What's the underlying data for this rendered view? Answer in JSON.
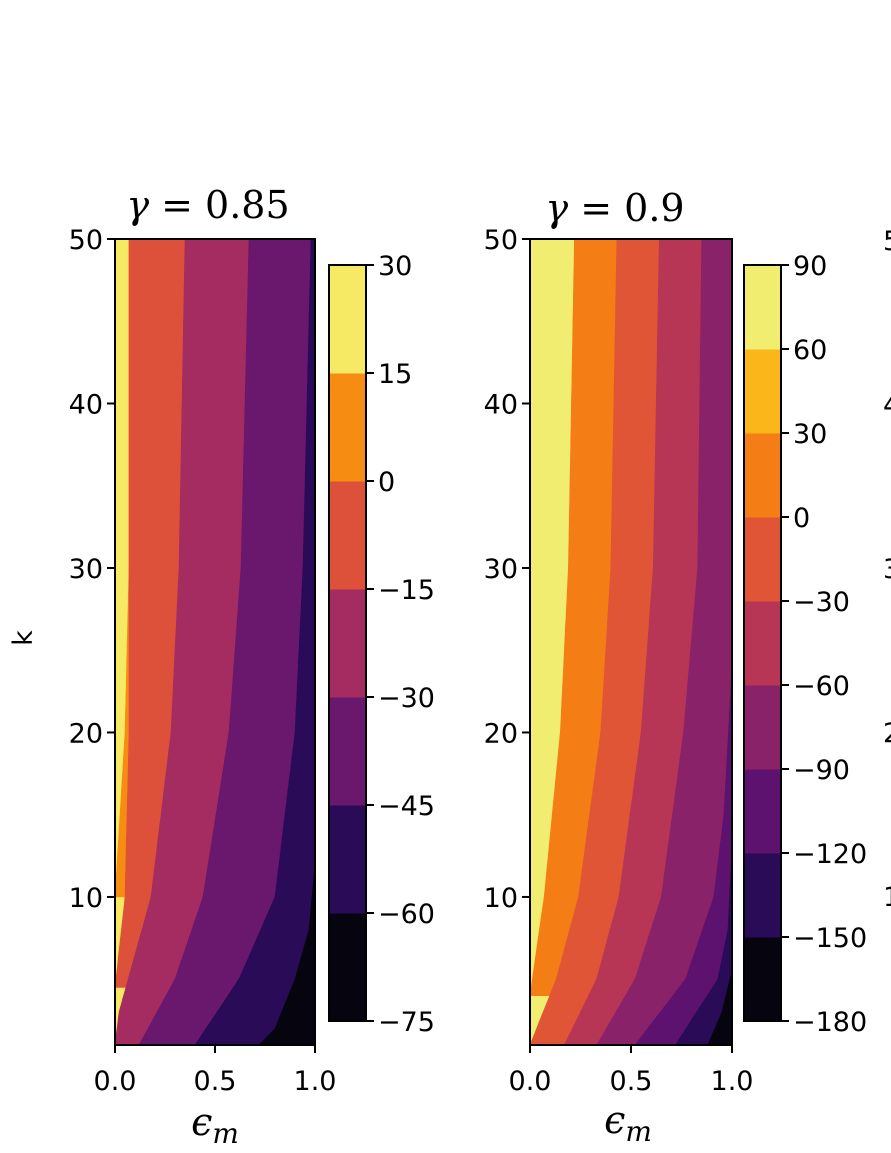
{
  "chart_data": [
    {
      "type": "heatmap",
      "subtype": "filled-contour",
      "title_var": "γ",
      "title_rest": " = 0.85",
      "xlabel_var": "ϵ",
      "xlabel_sub": "m",
      "ylabel": "k",
      "xlim": [
        0,
        1
      ],
      "ylim": [
        1,
        50
      ],
      "xticks": [
        "0.0",
        "0.5",
        "1.0"
      ],
      "yticks": [
        "10",
        "20",
        "30",
        "40",
        "50"
      ],
      "ytick_values": [
        10,
        20,
        30,
        40,
        50
      ],
      "colorbar": {
        "levels": [
          -75,
          -60,
          -45,
          -30,
          -15,
          0,
          15,
          30
        ],
        "labels": [
          "−75",
          "−60",
          "−45",
          "−30",
          "−15",
          "0",
          "15",
          "30"
        ],
        "colors": [
          "#05040f",
          "#2a0b57",
          "#6a176e",
          "#a52c60",
          "#dd513a",
          "#f68d12",
          "#f6e964"
        ]
      },
      "contour_boundaries": [
        {
          "level": 15,
          "x_at_k": [
            [
              50,
              0.07
            ],
            [
              30,
              0.07
            ],
            [
              20,
              0.05
            ],
            [
              10,
              0.0
            ]
          ]
        },
        {
          "level": 0,
          "x_at_k": [
            [
              50,
              0.07
            ],
            [
              20,
              0.07
            ],
            [
              10,
              0.05
            ],
            [
              4.5,
              0.0
            ]
          ]
        },
        {
          "level": -15,
          "x_at_k": [
            [
              50,
              0.35
            ],
            [
              30,
              0.32
            ],
            [
              20,
              0.28
            ],
            [
              10,
              0.18
            ],
            [
              3,
              0.02
            ],
            [
              1,
              0.0
            ]
          ]
        },
        {
          "level": -30,
          "x_at_k": [
            [
              50,
              0.67
            ],
            [
              30,
              0.63
            ],
            [
              20,
              0.57
            ],
            [
              10,
              0.44
            ],
            [
              5,
              0.3
            ],
            [
              1,
              0.12
            ]
          ]
        },
        {
          "level": -45,
          "x_at_k": [
            [
              50,
              0.98
            ],
            [
              30,
              0.94
            ],
            [
              20,
              0.9
            ],
            [
              10,
              0.8
            ],
            [
              5,
              0.62
            ],
            [
              1,
              0.4
            ]
          ]
        },
        {
          "level": -60,
          "x_at_k": [
            [
              12,
              1.0
            ],
            [
              8,
              0.97
            ],
            [
              5,
              0.9
            ],
            [
              2,
              0.8
            ],
            [
              1,
              0.72
            ]
          ]
        },
        {
          "level": -75,
          "x_at_k": [
            [
              1.8,
              1.0
            ],
            [
              1,
              0.96
            ]
          ]
        }
      ]
    },
    {
      "type": "heatmap",
      "subtype": "filled-contour",
      "title_var": "γ",
      "title_rest": " = 0.9",
      "xlabel_var": "ϵ",
      "xlabel_sub": "m",
      "ylabel": "",
      "xlim": [
        0,
        1
      ],
      "ylim": [
        1,
        50
      ],
      "xticks": [
        "0.0",
        "0.5",
        "1.0"
      ],
      "yticks": [
        "10",
        "20",
        "30",
        "40",
        "50"
      ],
      "ytick_values": [
        10,
        20,
        30,
        40,
        50
      ],
      "colorbar": {
        "levels": [
          -180,
          -150,
          -120,
          -90,
          -60,
          -30,
          0,
          30,
          60,
          90
        ],
        "labels": [
          "−180",
          "−150",
          "−120",
          "−90",
          "−60",
          "−30",
          "0",
          "30",
          "60",
          "90"
        ],
        "colors": [
          "#05040f",
          "#2a0b57",
          "#5c126e",
          "#8a226a",
          "#b83655",
          "#e05536",
          "#f57d15",
          "#fbb61a",
          "#f1ed71"
        ]
      },
      "contour_boundaries": [
        {
          "level": 30,
          "x_at_k": [
            [
              50,
              0.22
            ],
            [
              30,
              0.19
            ],
            [
              20,
              0.15
            ],
            [
              10,
              0.07
            ],
            [
              4,
              0.0
            ]
          ]
        },
        {
          "level": 0,
          "x_at_k": [
            [
              50,
              0.43
            ],
            [
              30,
              0.4
            ],
            [
              20,
              0.35
            ],
            [
              10,
              0.24
            ],
            [
              5,
              0.13
            ],
            [
              1,
              0.0
            ]
          ]
        },
        {
          "level": -30,
          "x_at_k": [
            [
              50,
              0.64
            ],
            [
              30,
              0.61
            ],
            [
              20,
              0.55
            ],
            [
              10,
              0.44
            ],
            [
              5,
              0.33
            ],
            [
              1,
              0.17
            ]
          ]
        },
        {
          "level": -60,
          "x_at_k": [
            [
              50,
              0.85
            ],
            [
              30,
              0.83
            ],
            [
              20,
              0.76
            ],
            [
              10,
              0.65
            ],
            [
              5,
              0.52
            ],
            [
              1,
              0.33
            ]
          ]
        },
        {
          "level": -90,
          "x_at_k": [
            [
              24,
              1.0
            ],
            [
              15,
              0.96
            ],
            [
              10,
              0.91
            ],
            [
              5,
              0.77
            ],
            [
              1,
              0.52
            ]
          ]
        },
        {
          "level": -120,
          "x_at_k": [
            [
              13,
              1.0
            ],
            [
              8,
              0.98
            ],
            [
              5,
              0.93
            ],
            [
              1,
              0.72
            ]
          ]
        },
        {
          "level": -150,
          "x_at_k": [
            [
              5.5,
              1.0
            ],
            [
              3,
              0.95
            ],
            [
              1,
              0.88
            ]
          ]
        }
      ]
    }
  ],
  "partial_third_panel": {
    "visible_tick_digits": [
      "5",
      "4",
      "3",
      "2",
      "1"
    ]
  }
}
